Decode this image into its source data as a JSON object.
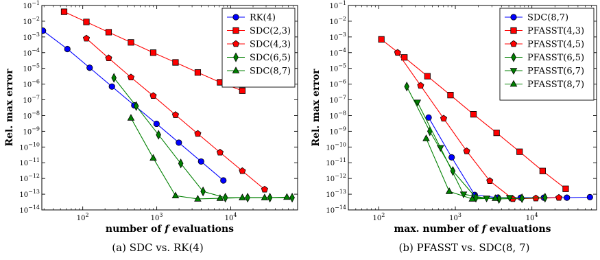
{
  "colors": {
    "blue": "#0000ff",
    "red": "#ff0000",
    "green": "#008000"
  },
  "chart_data": [
    {
      "type": "line",
      "xscale": "log",
      "yscale": "log",
      "xlim": [
        28,
        80000
      ],
      "ylim": [
        1e-14,
        0.1
      ],
      "xticks": [
        {
          "value": 100,
          "base": "10",
          "exp": "2"
        },
        {
          "value": 1000,
          "base": "10",
          "exp": "3"
        },
        {
          "value": 10000,
          "base": "10",
          "exp": "4"
        }
      ],
      "yticks": [
        {
          "value": 0.1,
          "base": "10",
          "exp": "−1"
        },
        {
          "value": 0.01,
          "base": "10",
          "exp": "−2"
        },
        {
          "value": 0.001,
          "base": "10",
          "exp": "−3"
        },
        {
          "value": 0.0001,
          "base": "10",
          "exp": "−4"
        },
        {
          "value": 1e-05,
          "base": "10",
          "exp": "−5"
        },
        {
          "value": 1e-06,
          "base": "10",
          "exp": "−6"
        },
        {
          "value": 1e-07,
          "base": "10",
          "exp": "−7"
        },
        {
          "value": 1e-08,
          "base": "10",
          "exp": "−8"
        },
        {
          "value": 1e-09,
          "base": "10",
          "exp": "−9"
        },
        {
          "value": 1e-10,
          "base": "10",
          "exp": "−10"
        },
        {
          "value": 1e-11,
          "base": "10",
          "exp": "−11"
        },
        {
          "value": 1e-12,
          "base": "10",
          "exp": "−12"
        },
        {
          "value": 1e-13,
          "base": "10",
          "exp": "−13"
        },
        {
          "value": 1e-14,
          "base": "10",
          "exp": "−14"
        }
      ],
      "xlabel": {
        "pre": "number of ",
        "var": "f",
        "post": " evaluations"
      },
      "ylabel": "Rel. max error",
      "caption": "(a)  SDC vs. RK(4)",
      "legend_position": "top-right",
      "series": [
        {
          "name": "RK(4)",
          "color": "#0000ff",
          "marker": "circle",
          "x": [
            29,
            62,
            124,
            248,
            497,
            994,
            1988,
            3975,
            7950
          ],
          "y": [
            0.0025,
            0.00017,
            1.1e-05,
            7e-07,
            4.5e-08,
            3e-09,
            1.9e-10,
            1.2e-11,
            7.5e-13
          ]
        },
        {
          "name": "SDC(2,3)",
          "color": "#ff0000",
          "marker": "square",
          "x": [
            56,
            112,
            224,
            448,
            896,
            1792,
            3584,
            7168,
            14336
          ],
          "y": [
            0.04,
            0.009,
            0.002,
            0.00045,
            0.0001,
            2.4e-05,
            5.5e-06,
            1.3e-06,
            3.8e-07
          ]
        },
        {
          "name": "SDC(4,3)",
          "color": "#ff0000",
          "marker": "pentagon",
          "x": [
            112,
            224,
            448,
            896,
            1792,
            3584,
            7168,
            14336,
            28672
          ],
          "y": [
            0.0008,
            4.5e-05,
            2.7e-06,
            1.8e-07,
            1.1e-08,
            7e-10,
            4.5e-11,
            3e-12,
            2e-13
          ]
        },
        {
          "name": "SDC(6,5)",
          "color": "#008000",
          "marker": "diamond",
          "x": [
            264,
            528,
            1056,
            2112,
            4224,
            8448,
            16896,
            33792,
            67584
          ],
          "y": [
            2.5e-06,
            4e-08,
            6e-10,
            9e-12,
            1.5e-13,
            6e-14,
            6e-14,
            6e-14,
            6e-14
          ]
        },
        {
          "name": "SDC(8,7)",
          "color": "#008000",
          "marker": "triangle-up",
          "x": [
            448,
            896,
            1792,
            3584,
            7168,
            14336,
            28672,
            57344
          ],
          "y": [
            7e-09,
            2e-11,
            8e-14,
            5e-14,
            5.5e-14,
            6e-14,
            6e-14,
            6.5e-14
          ]
        }
      ]
    },
    {
      "type": "line",
      "xscale": "log",
      "yscale": "log",
      "xlim": [
        40,
        70000
      ],
      "ylim": [
        1e-14,
        0.1
      ],
      "xticks": [
        {
          "value": 100,
          "base": "10",
          "exp": "2"
        },
        {
          "value": 1000,
          "base": "10",
          "exp": "3"
        },
        {
          "value": 10000,
          "base": "10",
          "exp": "4"
        }
      ],
      "yticks": [
        {
          "value": 0.1,
          "base": "10",
          "exp": "−1"
        },
        {
          "value": 0.01,
          "base": "10",
          "exp": "−2"
        },
        {
          "value": 0.001,
          "base": "10",
          "exp": "−3"
        },
        {
          "value": 0.0001,
          "base": "10",
          "exp": "−4"
        },
        {
          "value": 1e-05,
          "base": "10",
          "exp": "−5"
        },
        {
          "value": 1e-06,
          "base": "10",
          "exp": "−6"
        },
        {
          "value": 1e-07,
          "base": "10",
          "exp": "−7"
        },
        {
          "value": 1e-08,
          "base": "10",
          "exp": "−8"
        },
        {
          "value": 1e-09,
          "base": "10",
          "exp": "−9"
        },
        {
          "value": 1e-10,
          "base": "10",
          "exp": "−10"
        },
        {
          "value": 1e-11,
          "base": "10",
          "exp": "−11"
        },
        {
          "value": 1e-12,
          "base": "10",
          "exp": "−12"
        },
        {
          "value": 1e-13,
          "base": "10",
          "exp": "−13"
        },
        {
          "value": 1e-14,
          "base": "10",
          "exp": "−14"
        }
      ],
      "xlabel": {
        "pre": "max. number of ",
        "var": "f",
        "post": " evaluations"
      },
      "ylabel": "Rel. max error",
      "caption": "(b)  PFASST vs. SDC(8, 7)",
      "legend_position": "top-right",
      "series": [
        {
          "name": "SDC(8,7)",
          "color": "#0000ff",
          "marker": "circle",
          "x": [
            448,
            896,
            1792,
            3584,
            7168,
            14336,
            28672,
            57344
          ],
          "y": [
            7.5e-09,
            2.2e-11,
            9e-14,
            6e-14,
            6e-14,
            6e-14,
            6e-14,
            6.5e-14
          ]
        },
        {
          "name": "PFASST(4,3)",
          "color": "#ff0000",
          "marker": "square",
          "x": [
            108,
            216,
            432,
            864,
            1728,
            3456,
            6912,
            13824,
            27648
          ],
          "y": [
            0.0007,
            5e-05,
            3.2e-06,
            2e-07,
            1.2e-08,
            8e-10,
            5e-11,
            3e-12,
            2.2e-13
          ]
        },
        {
          "name": "PFASST(4,5)",
          "color": "#ff0000",
          "marker": "pentagon",
          "x": [
            176,
            352,
            704,
            1408,
            2816,
            5632,
            11264,
            22528
          ],
          "y": [
            0.0001,
            8e-07,
            6.5e-09,
            5.5e-11,
            7e-13,
            5e-14,
            5.5e-14,
            6e-14
          ]
        },
        {
          "name": "PFASST(6,5)",
          "color": "#008000",
          "marker": "diamond",
          "x": [
            232,
            464,
            928,
            1856,
            3712,
            7424,
            14848
          ],
          "y": [
            7e-07,
            1e-09,
            3e-12,
            6e-14,
            5e-14,
            5.5e-14,
            6e-14
          ]
        },
        {
          "name": "PFASST(6,7)",
          "color": "#008000",
          "marker": "triangle-down",
          "x": [
            320,
            640,
            1280,
            2560,
            5120
          ],
          "y": [
            7e-08,
            9e-11,
            1e-13,
            5.5e-14,
            6e-14
          ]
        },
        {
          "name": "PFASST(8,7)",
          "color": "#008000",
          "marker": "triangle-up",
          "x": [
            416,
            832,
            1664,
            3328
          ],
          "y": [
            3.5e-10,
            1.5e-13,
            5e-14,
            5.5e-14
          ]
        }
      ]
    }
  ]
}
